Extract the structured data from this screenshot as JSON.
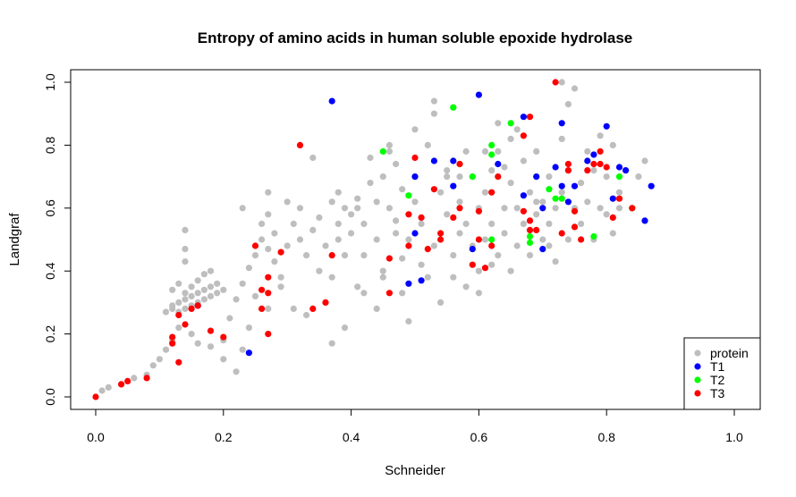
{
  "chart_data": {
    "type": "scatter",
    "title": "Entropy of amino acids in human soluble epoxide hydrolase",
    "xlabel": "Schneider",
    "ylabel": "Landgraf",
    "xlim": [
      0,
      1
    ],
    "ylim": [
      0,
      1
    ],
    "xticks": [
      "0.0",
      "0.2",
      "0.4",
      "0.6",
      "0.8",
      "1.0"
    ],
    "yticks": [
      "0.0",
      "0.2",
      "0.4",
      "0.6",
      "0.8",
      "1.0"
    ],
    "grid": false,
    "legend_position": "bottom-right",
    "series": [
      {
        "name": "protein",
        "color": "#bebebe",
        "points": [
          [
            0.01,
            0.02
          ],
          [
            0.02,
            0.03
          ],
          [
            0.04,
            0.04
          ],
          [
            0.06,
            0.06
          ],
          [
            0.08,
            0.07
          ],
          [
            0.09,
            0.1
          ],
          [
            0.1,
            0.12
          ],
          [
            0.11,
            0.15
          ],
          [
            0.11,
            0.27
          ],
          [
            0.12,
            0.28
          ],
          [
            0.12,
            0.29
          ],
          [
            0.13,
            0.27
          ],
          [
            0.13,
            0.3
          ],
          [
            0.14,
            0.28
          ],
          [
            0.14,
            0.31
          ],
          [
            0.15,
            0.29
          ],
          [
            0.15,
            0.32
          ],
          [
            0.16,
            0.3
          ],
          [
            0.16,
            0.33
          ],
          [
            0.17,
            0.31
          ],
          [
            0.17,
            0.34
          ],
          [
            0.18,
            0.32
          ],
          [
            0.18,
            0.35
          ],
          [
            0.19,
            0.33
          ],
          [
            0.19,
            0.36
          ],
          [
            0.2,
            0.34
          ],
          [
            0.12,
            0.34
          ],
          [
            0.13,
            0.36
          ],
          [
            0.14,
            0.33
          ],
          [
            0.15,
            0.35
          ],
          [
            0.16,
            0.37
          ],
          [
            0.17,
            0.39
          ],
          [
            0.18,
            0.4
          ],
          [
            0.14,
            0.47
          ],
          [
            0.14,
            0.53
          ],
          [
            0.14,
            0.43
          ],
          [
            0.13,
            0.22
          ],
          [
            0.12,
            0.18
          ],
          [
            0.15,
            0.2
          ],
          [
            0.16,
            0.17
          ],
          [
            0.18,
            0.16
          ],
          [
            0.2,
            0.18
          ],
          [
            0.21,
            0.25
          ],
          [
            0.22,
            0.08
          ],
          [
            0.22,
            0.31
          ],
          [
            0.23,
            0.36
          ],
          [
            0.24,
            0.41
          ],
          [
            0.23,
            0.6
          ],
          [
            0.25,
            0.45
          ],
          [
            0.26,
            0.5
          ],
          [
            0.27,
            0.47
          ],
          [
            0.28,
            0.52
          ],
          [
            0.26,
            0.55
          ],
          [
            0.27,
            0.58
          ],
          [
            0.27,
            0.65
          ],
          [
            0.28,
            0.43
          ],
          [
            0.29,
            0.38
          ],
          [
            0.3,
            0.48
          ],
          [
            0.3,
            0.62
          ],
          [
            0.31,
            0.55
          ],
          [
            0.32,
            0.5
          ],
          [
            0.32,
            0.6
          ],
          [
            0.33,
            0.45
          ],
          [
            0.34,
            0.53
          ],
          [
            0.35,
            0.4
          ],
          [
            0.35,
            0.57
          ],
          [
            0.36,
            0.3
          ],
          [
            0.36,
            0.48
          ],
          [
            0.37,
            0.38
          ],
          [
            0.37,
            0.62
          ],
          [
            0.38,
            0.5
          ],
          [
            0.38,
            0.55
          ],
          [
            0.39,
            0.45
          ],
          [
            0.39,
            0.6
          ],
          [
            0.4,
            0.58
          ],
          [
            0.4,
            0.52
          ],
          [
            0.41,
            0.35
          ],
          [
            0.41,
            0.63
          ],
          [
            0.42,
            0.45
          ],
          [
            0.42,
            0.55
          ],
          [
            0.43,
            0.68
          ],
          [
            0.43,
            0.76
          ],
          [
            0.44,
            0.5
          ],
          [
            0.44,
            0.62
          ],
          [
            0.45,
            0.7
          ],
          [
            0.45,
            0.4
          ],
          [
            0.46,
            0.78
          ],
          [
            0.46,
            0.6
          ],
          [
            0.47,
            0.56
          ],
          [
            0.47,
            0.52
          ],
          [
            0.48,
            0.66
          ],
          [
            0.48,
            0.44
          ],
          [
            0.49,
            0.24
          ],
          [
            0.49,
            0.5
          ],
          [
            0.5,
            0.62
          ],
          [
            0.5,
            0.7
          ],
          [
            0.51,
            0.42
          ],
          [
            0.51,
            0.55
          ],
          [
            0.52,
            0.8
          ],
          [
            0.52,
            0.38
          ],
          [
            0.53,
            0.48
          ],
          [
            0.53,
            0.94
          ],
          [
            0.54,
            0.3
          ],
          [
            0.54,
            0.65
          ],
          [
            0.55,
            0.58
          ],
          [
            0.55,
            0.72
          ],
          [
            0.56,
            0.45
          ],
          [
            0.56,
            0.38
          ],
          [
            0.57,
            0.62
          ],
          [
            0.57,
            0.52
          ],
          [
            0.58,
            0.55
          ],
          [
            0.58,
            0.78
          ],
          [
            0.59,
            0.48
          ],
          [
            0.59,
            0.7
          ],
          [
            0.6,
            0.6
          ],
          [
            0.6,
            0.4
          ],
          [
            0.61,
            0.5
          ],
          [
            0.61,
            0.65
          ],
          [
            0.62,
            0.55
          ],
          [
            0.62,
            0.72
          ],
          [
            0.63,
            0.45
          ],
          [
            0.63,
            0.78
          ],
          [
            0.64,
            0.6
          ],
          [
            0.64,
            0.52
          ],
          [
            0.65,
            0.68
          ],
          [
            0.65,
            0.82
          ],
          [
            0.66,
            0.48
          ],
          [
            0.66,
            0.6
          ],
          [
            0.67,
            0.75
          ],
          [
            0.67,
            0.55
          ],
          [
            0.68,
            0.65
          ],
          [
            0.68,
            0.45
          ],
          [
            0.69,
            0.58
          ],
          [
            0.69,
            0.78
          ],
          [
            0.7,
            0.5
          ],
          [
            0.7,
            0.62
          ],
          [
            0.71,
            0.7
          ],
          [
            0.71,
            0.55
          ],
          [
            0.72,
            0.43
          ],
          [
            0.72,
            0.6
          ],
          [
            0.73,
            0.65
          ],
          [
            0.73,
            0.82
          ],
          [
            0.74,
            0.5
          ],
          [
            0.74,
            0.72
          ],
          [
            0.75,
            0.6
          ],
          [
            0.75,
            0.98
          ],
          [
            0.76,
            0.55
          ],
          [
            0.76,
            0.68
          ],
          [
            0.77,
            0.78
          ],
          [
            0.77,
            0.62
          ],
          [
            0.78,
            0.5
          ],
          [
            0.78,
            0.72
          ],
          [
            0.79,
            0.6
          ],
          [
            0.79,
            0.83
          ],
          [
            0.8,
            0.58
          ],
          [
            0.8,
            0.7
          ],
          [
            0.81,
            0.52
          ],
          [
            0.81,
            0.8
          ],
          [
            0.82,
            0.65
          ],
          [
            0.82,
            0.6
          ],
          [
            0.83,
            0.72
          ],
          [
            0.84,
            0.6
          ],
          [
            0.85,
            0.7
          ],
          [
            0.86,
            0.75
          ],
          [
            0.73,
            1.0
          ],
          [
            0.74,
            0.93
          ],
          [
            0.63,
            0.87
          ],
          [
            0.66,
            0.85
          ],
          [
            0.69,
            0.62
          ],
          [
            0.71,
            0.48
          ],
          [
            0.55,
            0.7
          ],
          [
            0.58,
            0.35
          ],
          [
            0.62,
            0.42
          ],
          [
            0.6,
            0.33
          ],
          [
            0.65,
            0.4
          ],
          [
            0.53,
            0.9
          ],
          [
            0.48,
            0.33
          ],
          [
            0.44,
            0.28
          ],
          [
            0.39,
            0.22
          ],
          [
            0.37,
            0.17
          ],
          [
            0.33,
            0.26
          ],
          [
            0.31,
            0.28
          ],
          [
            0.29,
            0.35
          ],
          [
            0.25,
            0.32
          ],
          [
            0.27,
            0.28
          ],
          [
            0.24,
            0.22
          ],
          [
            0.2,
            0.12
          ],
          [
            0.23,
            0.15
          ],
          [
            0.34,
            0.76
          ],
          [
            0.38,
            0.65
          ],
          [
            0.41,
            0.6
          ],
          [
            0.47,
            0.74
          ],
          [
            0.5,
            0.85
          ],
          [
            0.46,
            0.8
          ],
          [
            0.42,
            0.33
          ],
          [
            0.45,
            0.38
          ],
          [
            0.56,
            0.92
          ],
          [
            0.57,
            0.7
          ],
          [
            0.61,
            0.78
          ],
          [
            0.64,
            0.73
          ]
        ]
      },
      {
        "name": "T1",
        "color": "#0000ff",
        "points": [
          [
            0.16,
            0.29
          ],
          [
            0.24,
            0.14
          ],
          [
            0.37,
            0.94
          ],
          [
            0.49,
            0.36
          ],
          [
            0.5,
            0.52
          ],
          [
            0.5,
            0.7
          ],
          [
            0.51,
            0.37
          ],
          [
            0.53,
            0.75
          ],
          [
            0.56,
            0.75
          ],
          [
            0.56,
            0.67
          ],
          [
            0.59,
            0.47
          ],
          [
            0.6,
            0.96
          ],
          [
            0.63,
            0.74
          ],
          [
            0.67,
            0.89
          ],
          [
            0.67,
            0.64
          ],
          [
            0.69,
            0.7
          ],
          [
            0.7,
            0.6
          ],
          [
            0.7,
            0.47
          ],
          [
            0.72,
            0.73
          ],
          [
            0.73,
            0.87
          ],
          [
            0.73,
            0.67
          ],
          [
            0.74,
            0.62
          ],
          [
            0.75,
            0.67
          ],
          [
            0.77,
            0.75
          ],
          [
            0.78,
            0.77
          ],
          [
            0.8,
            0.86
          ],
          [
            0.81,
            0.63
          ],
          [
            0.82,
            0.73
          ],
          [
            0.83,
            0.72
          ],
          [
            0.86,
            0.56
          ],
          [
            0.87,
            0.67
          ]
        ]
      },
      {
        "name": "T2",
        "color": "#00ff00",
        "points": [
          [
            0.45,
            0.78
          ],
          [
            0.49,
            0.64
          ],
          [
            0.56,
            0.92
          ],
          [
            0.57,
            0.74
          ],
          [
            0.59,
            0.7
          ],
          [
            0.62,
            0.8
          ],
          [
            0.62,
            0.77
          ],
          [
            0.62,
            0.5
          ],
          [
            0.65,
            0.87
          ],
          [
            0.68,
            0.49
          ],
          [
            0.68,
            0.51
          ],
          [
            0.71,
            0.66
          ],
          [
            0.72,
            0.63
          ],
          [
            0.73,
            0.63
          ],
          [
            0.78,
            0.51
          ],
          [
            0.82,
            0.7
          ],
          [
            0.84,
            0.6
          ]
        ]
      },
      {
        "name": "T3",
        "color": "#ff0000",
        "points": [
          [
            0.0,
            0.0
          ],
          [
            0.04,
            0.04
          ],
          [
            0.05,
            0.05
          ],
          [
            0.08,
            0.06
          ],
          [
            0.12,
            0.19
          ],
          [
            0.12,
            0.17
          ],
          [
            0.13,
            0.26
          ],
          [
            0.13,
            0.11
          ],
          [
            0.14,
            0.23
          ],
          [
            0.15,
            0.28
          ],
          [
            0.16,
            0.29
          ],
          [
            0.18,
            0.21
          ],
          [
            0.2,
            0.19
          ],
          [
            0.25,
            0.48
          ],
          [
            0.26,
            0.28
          ],
          [
            0.26,
            0.34
          ],
          [
            0.27,
            0.33
          ],
          [
            0.27,
            0.38
          ],
          [
            0.27,
            0.2
          ],
          [
            0.29,
            0.46
          ],
          [
            0.32,
            0.8
          ],
          [
            0.34,
            0.28
          ],
          [
            0.36,
            0.3
          ],
          [
            0.37,
            0.45
          ],
          [
            0.46,
            0.33
          ],
          [
            0.46,
            0.44
          ],
          [
            0.49,
            0.58
          ],
          [
            0.49,
            0.48
          ],
          [
            0.5,
            0.76
          ],
          [
            0.51,
            0.57
          ],
          [
            0.52,
            0.47
          ],
          [
            0.53,
            0.66
          ],
          [
            0.54,
            0.52
          ],
          [
            0.54,
            0.5
          ],
          [
            0.56,
            0.57
          ],
          [
            0.57,
            0.74
          ],
          [
            0.57,
            0.6
          ],
          [
            0.59,
            0.42
          ],
          [
            0.6,
            0.59
          ],
          [
            0.6,
            0.5
          ],
          [
            0.61,
            0.41
          ],
          [
            0.62,
            0.65
          ],
          [
            0.62,
            0.48
          ],
          [
            0.63,
            0.7
          ],
          [
            0.67,
            0.59
          ],
          [
            0.67,
            0.83
          ],
          [
            0.68,
            0.89
          ],
          [
            0.68,
            0.56
          ],
          [
            0.68,
            0.53
          ],
          [
            0.69,
            0.53
          ],
          [
            0.72,
            1.0
          ],
          [
            0.73,
            0.52
          ],
          [
            0.74,
            0.72
          ],
          [
            0.75,
            0.59
          ],
          [
            0.75,
            0.54
          ],
          [
            0.76,
            0.5
          ],
          [
            0.77,
            0.72
          ],
          [
            0.79,
            0.74
          ],
          [
            0.79,
            0.78
          ],
          [
            0.8,
            0.73
          ],
          [
            0.81,
            0.57
          ],
          [
            0.82,
            0.63
          ],
          [
            0.84,
            0.6
          ],
          [
            0.74,
            0.74
          ],
          [
            0.78,
            0.74
          ]
        ]
      }
    ]
  }
}
